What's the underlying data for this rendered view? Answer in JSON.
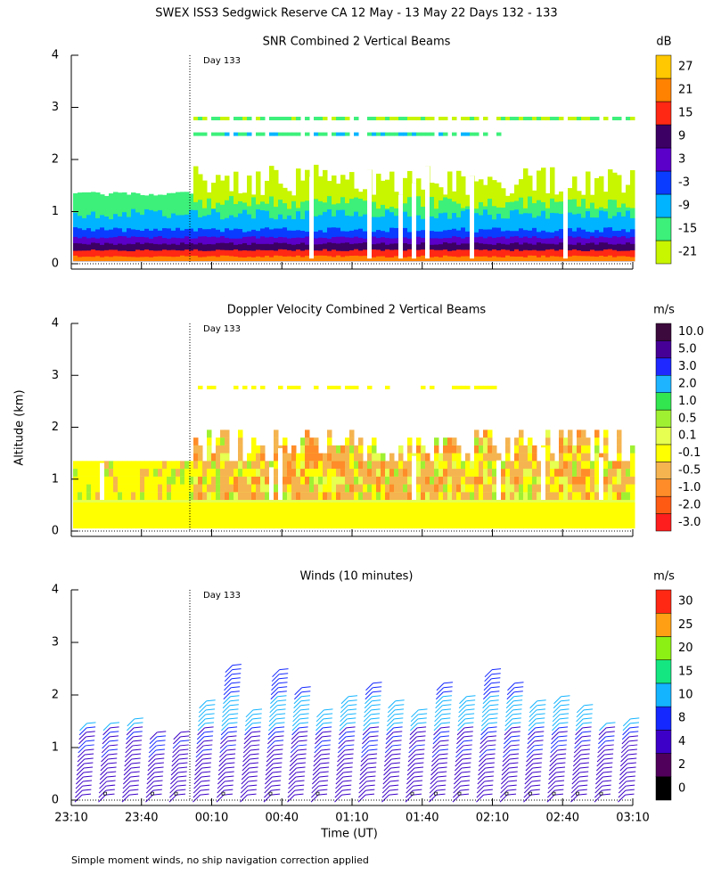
{
  "title": "SWEX ISS3 Sedgwick Reserve CA  12 May - 13 May 22 Days 132 - 133",
  "y_axis_label": "Altitude (km)",
  "x_axis_label": "Time (UT)",
  "footnote": "Simple moment winds, no ship navigation correction applied",
  "day_marker": "Day 133",
  "xticks": [
    "23:10",
    "23:40",
    "00:10",
    "00:40",
    "01:10",
    "01:40",
    "02:10",
    "02:40",
    "03:10"
  ],
  "panels": [
    {
      "type": "contour",
      "title": "SNR Combined 2 Vertical Beams",
      "ylim": [
        0,
        4
      ],
      "yticks": [
        0,
        1,
        2,
        3,
        4
      ],
      "colorbar": {
        "unit": "dB",
        "ticks": [
          -21,
          -15,
          -9,
          -3,
          3,
          9,
          15,
          21,
          27
        ],
        "colors": [
          "#c8f500",
          "#3cf07a",
          "#00b4ff",
          "#0a3cff",
          "#5a00c8",
          "#3c0064",
          "#ff2814",
          "#ff8200",
          "#ffc800"
        ]
      }
    },
    {
      "type": "contour",
      "title": "Doppler Velocity Combined 2 Vertical Beams",
      "ylim": [
        0,
        4
      ],
      "yticks": [
        0,
        1,
        2,
        3,
        4
      ],
      "colorbar": {
        "unit": "m/s",
        "ticks": [
          {
            "value": -3,
            "label": "-3.0"
          },
          {
            "value": -2,
            "label": "-2.0"
          },
          {
            "value": -1,
            "label": "-1.0"
          },
          -0.5,
          -0.1,
          0.1,
          0.5,
          {
            "value": 1,
            "label": "1.0"
          },
          {
            "value": 2,
            "label": "2.0"
          },
          {
            "value": 3,
            "label": "3.0"
          },
          {
            "value": 5,
            "label": "5.0"
          },
          {
            "value": 10,
            "label": "10.0"
          }
        ],
        "colors": [
          "#ff1e1e",
          "#ff5a14",
          "#ff8c28",
          "#f5b450",
          "#ffff00",
          "#e6ff50",
          "#a0f032",
          "#32e650",
          "#1eb4ff",
          "#1e28ff",
          "#460096",
          "#3c0a3c"
        ]
      }
    },
    {
      "type": "barbs",
      "title": "Winds (10 minutes)",
      "ylim": [
        0,
        4
      ],
      "yticks": [
        0,
        1,
        2,
        3,
        4
      ],
      "colorbar": {
        "unit": "m/s",
        "ticks": [
          0,
          2,
          4,
          8,
          10,
          15,
          20,
          25,
          30
        ],
        "colors": [
          "#000000",
          "#50005a",
          "#3c00c8",
          "#1428ff",
          "#14b4ff",
          "#14e682",
          "#8cf014",
          "#ffa014",
          "#ff2814"
        ]
      }
    }
  ]
}
